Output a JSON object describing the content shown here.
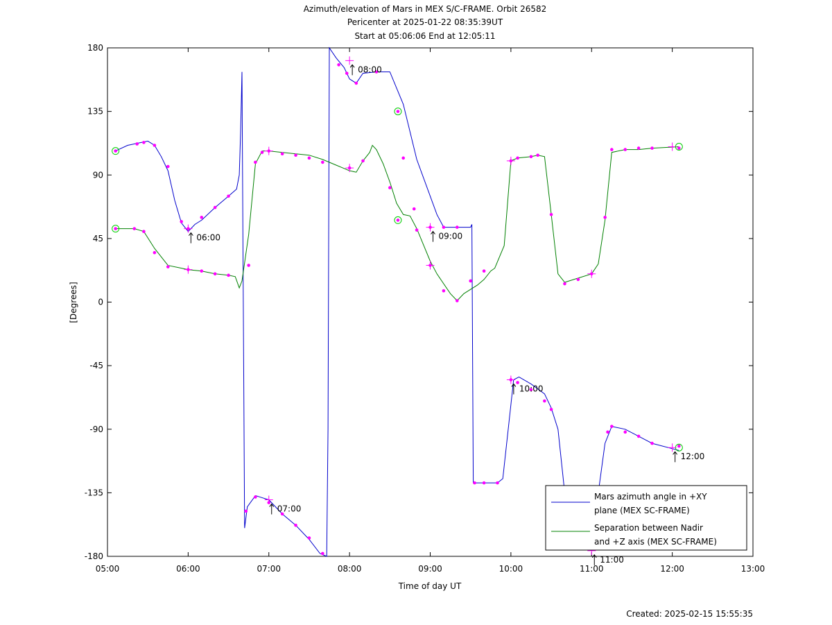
{
  "chart_data": {
    "type": "line",
    "title": [
      "Azimuth/elevation of Mars in MEX S/C-FRAME.  Orbit 26582",
      "Pericenter at 2025-01-22 08:35:39UT",
      "Start at 05:06:06 End at 12:05:11"
    ],
    "xlabel": "Time of day UT",
    "ylabel": "[Degrees]",
    "xlim": [
      "05:00",
      "13:00"
    ],
    "ylim": [
      -180,
      180
    ],
    "x_ticks": [
      "05:00",
      "06:00",
      "07:00",
      "08:00",
      "09:00",
      "10:00",
      "11:00",
      "12:00",
      "13:00"
    ],
    "y_ticks": [
      180,
      135,
      90,
      45,
      0,
      -45,
      -90,
      -135,
      -180
    ],
    "grid": false,
    "legend_position": "bottom-right",
    "footer": "Created: 2025-02-15 15:55:35",
    "series": [
      {
        "name": "Mars azimuth angle in +XY plane (MEX SC-FRAME)",
        "legend_lines": [
          "Mars azimuth angle in +XY",
          "plane (MEX SC-FRAME)"
        ],
        "color": "#0000cc",
        "points": [
          [
            "05:06",
            107
          ],
          [
            "05:15",
            111
          ],
          [
            "05:30",
            114
          ],
          [
            "05:35",
            111
          ],
          [
            "05:40",
            103
          ],
          [
            "05:45",
            93
          ],
          [
            "05:50",
            72
          ],
          [
            "05:55",
            56
          ],
          [
            "06:00",
            50
          ],
          [
            "06:05",
            55
          ],
          [
            "06:10",
            58
          ],
          [
            "06:20",
            67
          ],
          [
            "06:30",
            75
          ],
          [
            "06:36",
            80
          ],
          [
            "06:38",
            90
          ],
          [
            "06:39",
            120
          ],
          [
            "06:40",
            163
          ],
          [
            "06:41",
            0
          ],
          [
            "06:42",
            -160
          ],
          [
            "06:44",
            -145
          ],
          [
            "06:50",
            -137
          ],
          [
            "07:00",
            -140
          ],
          [
            "07:10",
            -150
          ],
          [
            "07:20",
            -158
          ],
          [
            "07:30",
            -168
          ],
          [
            "07:38",
            -178
          ],
          [
            "07:43",
            -180
          ],
          [
            "07:44",
            -90
          ],
          [
            "07:45",
            180
          ],
          [
            "07:50",
            173
          ],
          [
            "07:56",
            166
          ],
          [
            "08:00",
            158
          ],
          [
            "08:05",
            155
          ],
          [
            "08:10",
            162
          ],
          [
            "08:20",
            163
          ],
          [
            "08:30",
            163
          ],
          [
            "08:40",
            140
          ],
          [
            "08:50",
            101
          ],
          [
            "09:00",
            75
          ],
          [
            "09:05",
            62
          ],
          [
            "09:10",
            53
          ],
          [
            "09:20",
            53
          ],
          [
            "09:30",
            53
          ],
          [
            "09:31",
            55
          ],
          [
            "09:32",
            -128
          ],
          [
            "09:40",
            -128
          ],
          [
            "09:50",
            -128
          ],
          [
            "09:54",
            -125
          ],
          [
            "09:58",
            -90
          ],
          [
            "10:02",
            -55
          ],
          [
            "10:06",
            -53
          ],
          [
            "10:15",
            -58
          ],
          [
            "10:25",
            -65
          ],
          [
            "10:30",
            -75
          ],
          [
            "10:35",
            -90
          ],
          [
            "10:40",
            -135
          ],
          [
            "10:45",
            -170
          ],
          [
            "10:58",
            -172
          ],
          [
            "11:02",
            -160
          ],
          [
            "11:05",
            -135
          ],
          [
            "11:10",
            -100
          ],
          [
            "11:15",
            -88
          ],
          [
            "11:25",
            -90
          ],
          [
            "11:35",
            -95
          ],
          [
            "11:45",
            -100
          ],
          [
            "12:05",
            -105
          ]
        ],
        "markers": [
          [
            "05:06",
            107
          ],
          [
            "05:22",
            112
          ],
          [
            "05:27",
            113
          ],
          [
            "05:35",
            111
          ],
          [
            "05:45",
            96
          ],
          [
            "05:55",
            57
          ],
          [
            "06:00",
            52
          ],
          [
            "06:10",
            60
          ],
          [
            "06:20",
            67
          ],
          [
            "06:30",
            75
          ],
          [
            "06:43",
            -148
          ],
          [
            "06:50",
            -138
          ],
          [
            "07:00",
            -142
          ],
          [
            "07:10",
            -150
          ],
          [
            "07:20",
            -158
          ],
          [
            "07:30",
            -167
          ],
          [
            "07:40",
            -178
          ],
          [
            "07:52",
            168
          ],
          [
            "07:58",
            162
          ],
          [
            "08:05",
            155
          ],
          [
            "08:20",
            163
          ],
          [
            "08:36",
            135
          ],
          [
            "08:40",
            102
          ],
          [
            "08:48",
            66
          ],
          [
            "09:00",
            53
          ],
          [
            "09:10",
            53
          ],
          [
            "09:20",
            53
          ],
          [
            "09:33",
            -128
          ],
          [
            "09:40",
            -128
          ],
          [
            "09:50",
            -128
          ],
          [
            "10:00",
            -55
          ],
          [
            "10:05",
            -57
          ],
          [
            "10:15",
            -62
          ],
          [
            "10:25",
            -70
          ],
          [
            "10:30",
            -76
          ],
          [
            "11:12",
            -92
          ],
          [
            "11:15",
            -88
          ],
          [
            "11:25",
            -92
          ],
          [
            "11:35",
            -95
          ],
          [
            "11:45",
            -100
          ],
          [
            "12:05",
            -102
          ]
        ]
      },
      {
        "name": "Separation between Nadir and +Z axis (MEX SC-FRAME)",
        "legend_lines": [
          "Separation between Nadir",
          "and +Z axis (MEX SC-FRAME)"
        ],
        "color": "#008000",
        "points": [
          [
            "05:06",
            52
          ],
          [
            "05:20",
            52
          ],
          [
            "05:27",
            50
          ],
          [
            "05:35",
            38
          ],
          [
            "05:45",
            26
          ],
          [
            "05:55",
            24
          ],
          [
            "06:00",
            23
          ],
          [
            "06:10",
            22
          ],
          [
            "06:20",
            20
          ],
          [
            "06:30",
            19
          ],
          [
            "06:35",
            18
          ],
          [
            "06:38",
            10
          ],
          [
            "06:40",
            15
          ],
          [
            "06:45",
            48
          ],
          [
            "06:50",
            98
          ],
          [
            "06:55",
            107
          ],
          [
            "07:00",
            107
          ],
          [
            "07:10",
            106
          ],
          [
            "07:20",
            105
          ],
          [
            "07:30",
            104
          ],
          [
            "07:40",
            101
          ],
          [
            "07:50",
            97
          ],
          [
            "07:55",
            95
          ],
          [
            "08:00",
            93
          ],
          [
            "08:05",
            92
          ],
          [
            "08:10",
            100
          ],
          [
            "08:15",
            106
          ],
          [
            "08:17",
            111
          ],
          [
            "08:20",
            108
          ],
          [
            "08:25",
            98
          ],
          [
            "08:30",
            85
          ],
          [
            "08:35",
            70
          ],
          [
            "08:40",
            62
          ],
          [
            "08:45",
            61
          ],
          [
            "08:50",
            52
          ],
          [
            "09:00",
            29
          ],
          [
            "09:05",
            20
          ],
          [
            "09:15",
            6
          ],
          [
            "09:20",
            1
          ],
          [
            "09:25",
            6
          ],
          [
            "09:35",
            12
          ],
          [
            "09:40",
            16
          ],
          [
            "09:45",
            22
          ],
          [
            "09:48",
            24
          ],
          [
            "09:55",
            40
          ],
          [
            "10:00",
            100
          ],
          [
            "10:05",
            102
          ],
          [
            "10:15",
            103
          ],
          [
            "10:20",
            104
          ],
          [
            "10:25",
            103
          ],
          [
            "10:30",
            62
          ],
          [
            "10:35",
            20
          ],
          [
            "10:40",
            14
          ],
          [
            "10:50",
            17
          ],
          [
            "11:00",
            20
          ],
          [
            "11:05",
            27
          ],
          [
            "11:10",
            58
          ],
          [
            "11:15",
            106
          ],
          [
            "11:25",
            108
          ],
          [
            "11:35",
            108
          ],
          [
            "11:45",
            109
          ],
          [
            "12:05",
            110
          ]
        ],
        "markers": [
          [
            "05:06",
            52
          ],
          [
            "05:20",
            52
          ],
          [
            "05:27",
            50
          ],
          [
            "05:35",
            35
          ],
          [
            "05:45",
            25
          ],
          [
            "06:00",
            23
          ],
          [
            "06:10",
            22
          ],
          [
            "06:20",
            20
          ],
          [
            "06:30",
            19
          ],
          [
            "06:45",
            26
          ],
          [
            "06:50",
            99
          ],
          [
            "06:55",
            106
          ],
          [
            "07:00",
            107
          ],
          [
            "07:10",
            105
          ],
          [
            "07:20",
            104
          ],
          [
            "07:30",
            102
          ],
          [
            "07:40",
            99
          ],
          [
            "08:00",
            95
          ],
          [
            "08:10",
            100
          ],
          [
            "08:30",
            81
          ],
          [
            "08:36",
            58
          ],
          [
            "08:50",
            51
          ],
          [
            "09:00",
            26
          ],
          [
            "09:10",
            8
          ],
          [
            "09:20",
            1
          ],
          [
            "09:30",
            15
          ],
          [
            "09:40",
            22
          ],
          [
            "10:00",
            100
          ],
          [
            "10:05",
            102
          ],
          [
            "10:15",
            103
          ],
          [
            "10:20",
            104
          ],
          [
            "10:30",
            62
          ],
          [
            "10:40",
            13
          ],
          [
            "10:50",
            16
          ],
          [
            "11:00",
            20
          ],
          [
            "11:10",
            60
          ],
          [
            "11:15",
            108
          ],
          [
            "11:25",
            108
          ],
          [
            "11:35",
            109
          ],
          [
            "11:45",
            109
          ],
          [
            "12:05",
            109
          ]
        ]
      }
    ],
    "hour_marks": [
      {
        "label": "06:00",
        "time": "06:00",
        "value": 52
      },
      {
        "label": "07:00",
        "time": "07:00",
        "value": -140
      },
      {
        "label": "08:00",
        "time": "08:00",
        "value": 171
      },
      {
        "label": "09:00",
        "time": "09:00",
        "value": 53
      },
      {
        "label": "10:00",
        "time": "10:00",
        "value": -55
      },
      {
        "label": "11:00",
        "time": "11:00",
        "value": -176
      },
      {
        "label": "12:00",
        "time": "12:00",
        "value": -103
      }
    ],
    "extra_crosses": [
      [
        "06:00",
        23
      ],
      [
        "07:00",
        107
      ],
      [
        "08:00",
        95
      ],
      [
        "09:00",
        26
      ],
      [
        "10:00",
        100
      ],
      [
        "11:00",
        20
      ],
      [
        "12:00",
        110
      ]
    ],
    "circle_markers": [
      [
        "05:06",
        107
      ],
      [
        "05:06",
        52
      ],
      [
        "08:36",
        135
      ],
      [
        "08:36",
        58
      ],
      [
        "12:05",
        110
      ],
      [
        "12:05",
        -103
      ]
    ],
    "colors": {
      "azimuth": "#0000cc",
      "separation": "#008000",
      "marker": "#ff00ff",
      "circle": "#00cc00"
    }
  }
}
